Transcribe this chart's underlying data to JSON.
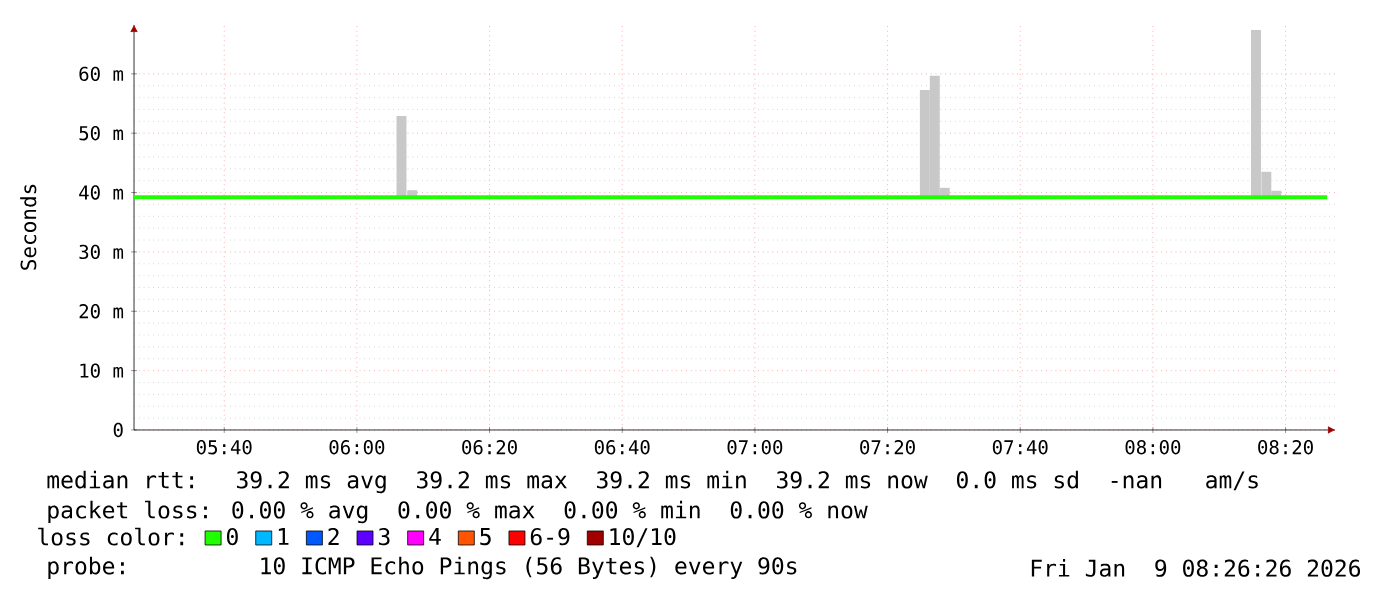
{
  "chart_data": {
    "type": "line",
    "ylabel": "Seconds",
    "legend_title": "loss color:",
    "legend": "bottom",
    "grid": true,
    "xlim": [
      5.44,
      8.46
    ],
    "ylim": [
      0,
      68.4
    ],
    "xticks": [
      {
        "value": 5.6667,
        "label": "05:40"
      },
      {
        "value": 6,
        "label": "06:00"
      },
      {
        "value": 6.3333,
        "label": "06:20"
      },
      {
        "value": 6.6667,
        "label": "06:40"
      },
      {
        "value": 7,
        "label": "07:00"
      },
      {
        "value": 7.3333,
        "label": "07:20"
      },
      {
        "value": 7.6667,
        "label": "07:40"
      },
      {
        "value": 8,
        "label": "08:00"
      },
      {
        "value": 8.3333,
        "label": "08:20"
      }
    ],
    "yticks": [
      0,
      {
        "value": 10,
        "label": "10 m"
      },
      {
        "value": 20,
        "label": "20 m"
      },
      {
        "value": 30,
        "label": "30 m"
      },
      {
        "value": 40,
        "label": "40 m"
      },
      {
        "value": 50,
        "label": "50 m"
      },
      {
        "value": 60,
        "label": "60 m"
      }
    ],
    "series": [
      {
        "type": "bar",
        "color": "#c8c8c8",
        "x": [
          6.112,
          6.139,
          7.427,
          7.452,
          7.477,
          8.259,
          8.285,
          8.31
        ],
        "base": [
          39.2,
          39.2,
          39.2,
          39.2,
          39.2,
          39.2,
          39.2,
          39.2
        ],
        "values": [
          13.7,
          1.2,
          18.1,
          20.5,
          1.6,
          28.2,
          4.3,
          1.1
        ]
      },
      {
        "name": "0",
        "color": "#20ff00",
        "x": [
          5.44,
          8.438
        ],
        "values": [
          39.2,
          39.2
        ]
      },
      {
        "name": "1",
        "color": "#00b8ff"
      },
      {
        "name": "2",
        "color": "#0059ff"
      },
      {
        "name": "3",
        "color": "#5e00ff"
      },
      {
        "name": "4",
        "color": "#ff00ff"
      },
      {
        "name": "5",
        "color": "#ff5500"
      },
      {
        "name": "6-9",
        "color": "#ff0000"
      },
      {
        "name": "10/10",
        "color": "#a00000"
      }
    ],
    "annotations": [
      "median rtt:  39.2 ms avg  39.2 ms max  39.2 ms min  39.2 ms now  0.0 ms sd  -nan   am/s",
      "packet loss: 0.00 % avg  0.00 % max  0.00 % min  0.00 % now",
      "probe:       10 ICMP Echo Pings (56 Bytes) every 90s",
      "Fri Jan  9 08:26:26 2026"
    ]
  }
}
